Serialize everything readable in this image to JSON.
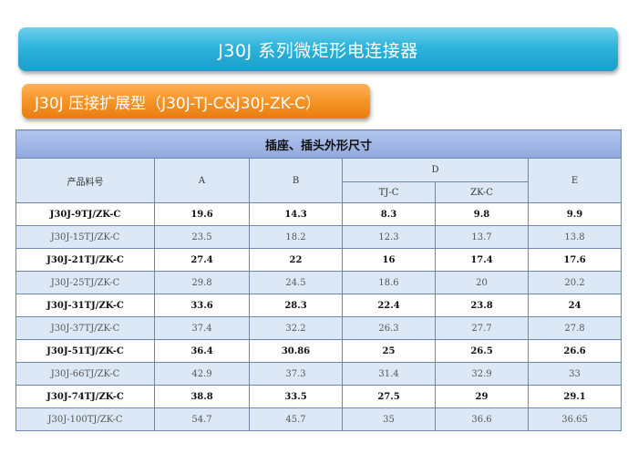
{
  "banner": {
    "title": "J30J 系列微矩形电连接器"
  },
  "sub_banner": {
    "title": "J30J 压接扩展型（J30J-TJ-C&J30J-ZK-C）"
  },
  "table": {
    "caption": "插座、插头外形尺寸",
    "headers": {
      "part_no": "产品料号",
      "a": "A",
      "b": "B",
      "d": "D",
      "d_tj": "TJ-C",
      "d_zk": "ZK-C",
      "e": "E"
    },
    "rows": [
      [
        "J30J-9TJ/ZK-C",
        "19.6",
        "14.3",
        "8.3",
        "9.8",
        "9.9"
      ],
      [
        "J30J-15TJ/ZK-C",
        "23.5",
        "18.2",
        "12.3",
        "13.7",
        "13.8"
      ],
      [
        "J30J-21TJ/ZK-C",
        "27.4",
        "22",
        "16",
        "17.4",
        "17.6"
      ],
      [
        "J30J-25TJ/ZK-C",
        "29.8",
        "24.5",
        "18.6",
        "20",
        "20.2"
      ],
      [
        "J30J-31TJ/ZK-C",
        "33.6",
        "28.3",
        "22.4",
        "23.8",
        "24"
      ],
      [
        "J30J-37TJ/ZK-C",
        "37.4",
        "32.2",
        "26.3",
        "27.7",
        "27.8"
      ],
      [
        "J30J-51TJ/ZK-C",
        "36.4",
        "30.86",
        "25",
        "26.5",
        "26.6"
      ],
      [
        "J30J-66TJ/ZK-C",
        "42.9",
        "37.3",
        "31.4",
        "32.9",
        "33"
      ],
      [
        "J30J-74TJ/ZK-C",
        "38.8",
        "33.5",
        "27.5",
        "29",
        "29.1"
      ],
      [
        "J30J-100TJ/ZK-C",
        "54.7",
        "45.7",
        "35",
        "36.6",
        "36.65"
      ]
    ]
  },
  "colors": {
    "banner": "#2eb3dc",
    "sub_banner": "#f59426",
    "header_band": "#a3b8e8",
    "alt_row": "#dde8f6"
  }
}
